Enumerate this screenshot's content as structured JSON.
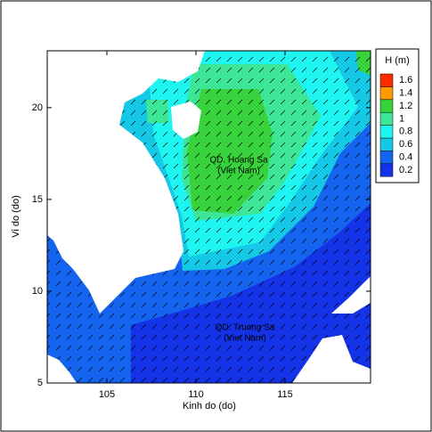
{
  "chart_data": {
    "type": "contour",
    "xlabel": "Kinh do (do)",
    "ylabel": "Vi do (do)",
    "xlim": [
      101.65,
      119.8
    ],
    "ylim": [
      5,
      23.1
    ],
    "xticks": [
      105,
      110,
      115
    ],
    "yticks": [
      5,
      10,
      15,
      20
    ],
    "legend_title": "H  (m)",
    "legend_position": "right",
    "levels": [
      0.2,
      0.4,
      0.6,
      0.8,
      1,
      1.2,
      1.4,
      1.6
    ],
    "colors": [
      "#1432e6",
      "#1464f0",
      "#14c8e6",
      "#1ef5f0",
      "#3ce696",
      "#37d23c",
      "#ff9a00",
      "#ff2a00"
    ],
    "annotations": [
      "QD. Hoang Sa",
      "(Viet Nam)",
      "QD. Truong Sa",
      "(Viet Nam)"
    ]
  }
}
